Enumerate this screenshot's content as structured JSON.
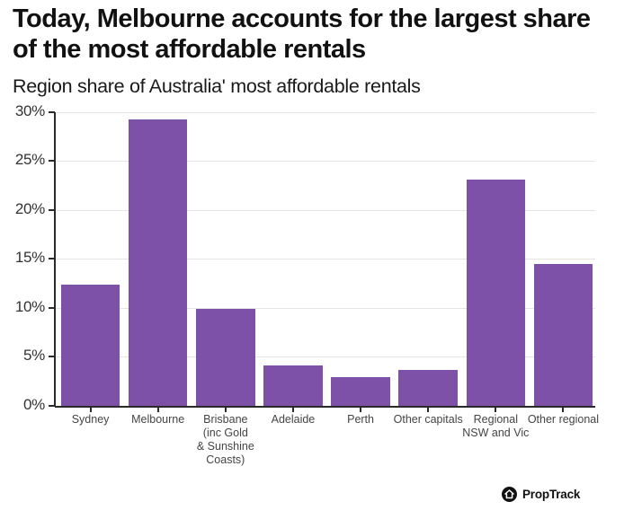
{
  "header": {
    "title": "Today, Melbourne accounts for the largest share of the most affordable rentals",
    "subtitle": "Region share of Australia' most affordable rentals"
  },
  "brand": {
    "logo_text": "PropTrack",
    "logo_icon": "house-icon"
  },
  "colors": {
    "bar": "#7d51a8",
    "grid": "#e4e4e4",
    "axis": "#2a2a2a"
  },
  "chart_data": {
    "type": "bar",
    "title": "Today, Melbourne accounts for the largest share of the most affordable rentals",
    "subtitle": "Region share of Australia' most affordable rentals",
    "xlabel": "",
    "ylabel": "",
    "categories": [
      "Sydney",
      "Melbourne",
      "Brisbane (inc Gold & Sunshine Coasts)",
      "Adelaide",
      "Perth",
      "Other capitals",
      "Regional NSW and Vic",
      "Other regional"
    ],
    "category_labels_display": [
      "Sydney",
      "Melbourne",
      "Brisbane\n(inc Gold\n& Sunshine\nCoasts)",
      "Adelaide",
      "Perth",
      "Other capitals",
      "Regional\nNSW and Vic",
      "Other regional"
    ],
    "values": [
      12.4,
      29.2,
      9.9,
      4.1,
      2.9,
      3.7,
      23.1,
      14.5
    ],
    "unit": "%",
    "ylim": [
      0,
      30
    ],
    "yticks": [
      0,
      5,
      10,
      15,
      20,
      25,
      30
    ],
    "ytick_labels": [
      "0%",
      "5%",
      "10%",
      "15%",
      "20%",
      "25%",
      "30%"
    ],
    "grid": true,
    "legend": null
  }
}
